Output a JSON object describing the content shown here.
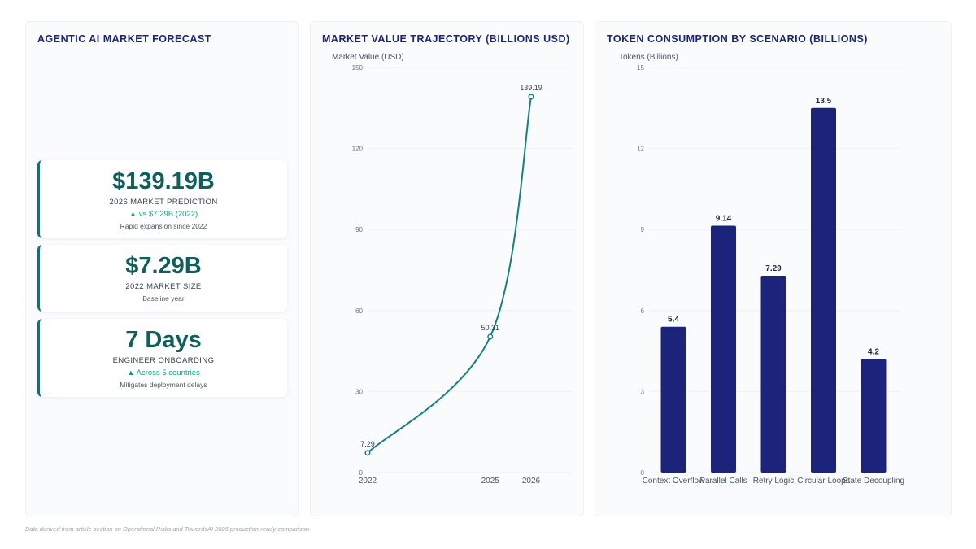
{
  "kpi_panel": {
    "title": "AGENTIC AI MARKET FORECAST",
    "cards": [
      {
        "value": "$139.19B",
        "label": "2026 MARKET PREDICTION",
        "trend": "▲ vs $7.29B (2022)",
        "note": "Rapid expansion since 2022"
      },
      {
        "value": "$7.29B",
        "label": "2022 MARKET SIZE",
        "trend": "",
        "note": "Baseline year"
      },
      {
        "value": "7 Days",
        "label": "ENGINEER ONBOARDING",
        "trend": "▲ Across 5 countries",
        "note": "Mitigates deployment delays"
      }
    ]
  },
  "line_panel": {
    "title": "MARKET VALUE TRAJECTORY (BILLIONS USD)"
  },
  "bar_panel": {
    "title": "TOKEN CONSUMPTION BY SCENARIO (BILLIONS)"
  },
  "footnote": "Data derived from article section on Operational Risks and TowardsAI 2026 production-ready comparison.",
  "colors": {
    "line": "#17807e",
    "bar": "#1b237a",
    "accent": "#17706e",
    "trend": "#10a37f"
  },
  "chart_data": [
    {
      "type": "line",
      "title": "MARKET VALUE TRAJECTORY (BILLIONS USD)",
      "ylabel": "Market Value (USD)",
      "xlabel": "",
      "x": [
        "2022",
        "2025",
        "2026"
      ],
      "values": [
        7.29,
        50.31,
        139.19
      ],
      "data_labels": [
        "7.29",
        "50.31",
        "139.19"
      ],
      "ylim": [
        0,
        150
      ],
      "yticks": [
        0,
        30,
        60,
        90,
        120,
        150
      ],
      "grid": true
    },
    {
      "type": "bar",
      "title": "TOKEN CONSUMPTION BY SCENARIO (BILLIONS)",
      "ylabel": "Tokens (Billions)",
      "xlabel": "",
      "categories": [
        "Context Overflow",
        "Parallel Calls",
        "Retry Logic",
        "Circular Loops",
        "State Decoupling"
      ],
      "values": [
        5.4,
        9.14,
        7.29,
        13.5,
        4.2
      ],
      "data_labels": [
        "5.4",
        "9.14",
        "7.29",
        "13.5",
        "4.2"
      ],
      "ylim": [
        0,
        15
      ],
      "yticks": [
        0,
        3,
        6,
        9,
        12,
        15
      ],
      "grid": true
    }
  ]
}
